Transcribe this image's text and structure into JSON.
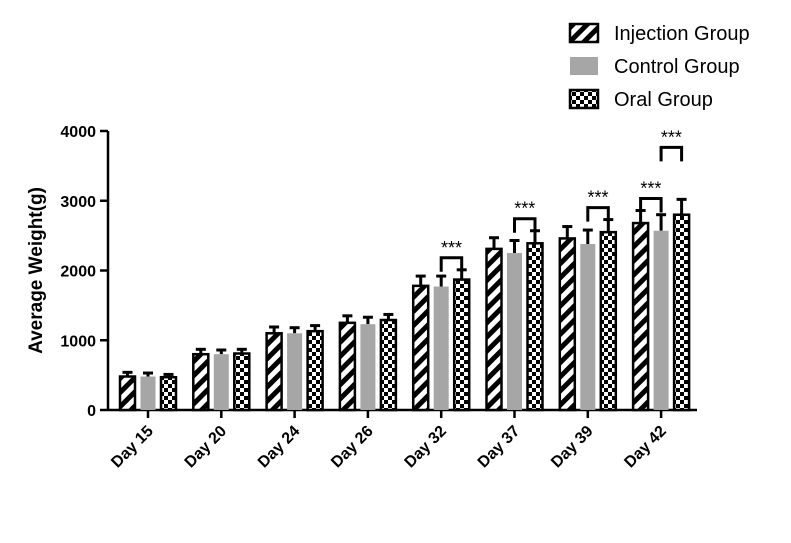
{
  "chart_data": {
    "type": "bar",
    "ylabel": "Average Weight(g)",
    "ylim": [
      0,
      4000
    ],
    "yticks": [
      "0",
      "1000",
      "2000",
      "3000",
      "4000"
    ],
    "categories": [
      "Day 15",
      "Day 20",
      "Day 24",
      "Day 26",
      "Day 32",
      "Day 37",
      "Day 39",
      "Day 42"
    ],
    "series": [
      {
        "name": "Injection Group",
        "pattern": "diagonal-stripes",
        "color": "#000000",
        "values": [
          480,
          800,
          1100,
          1250,
          1780,
          2310,
          2460,
          2680
        ],
        "errors": [
          60,
          70,
          90,
          100,
          140,
          160,
          170,
          180
        ]
      },
      {
        "name": "Control Group",
        "pattern": "solid",
        "color": "#a6a6a6",
        "values": [
          480,
          800,
          1100,
          1230,
          1770,
          2250,
          2380,
          2570
        ],
        "errors": [
          50,
          60,
          80,
          100,
          150,
          180,
          200,
          230
        ]
      },
      {
        "name": "Oral Group",
        "pattern": "checkerboard",
        "color": "#000000",
        "values": [
          470,
          810,
          1130,
          1290,
          1870,
          2390,
          2550,
          2800
        ],
        "errors": [
          40,
          60,
          80,
          80,
          140,
          180,
          180,
          220
        ]
      }
    ],
    "annotations": [
      {
        "text": "***",
        "category": "Day 32",
        "between": [
          "Control Group",
          "Oral Group"
        ]
      },
      {
        "text": "***",
        "category": "Day 37",
        "between": [
          "Control Group",
          "Oral Group"
        ]
      },
      {
        "text": "***",
        "category": "Day 39",
        "between": [
          "Control Group",
          "Oral Group"
        ]
      },
      {
        "text": "***",
        "category": "Day 42",
        "between": [
          "Injection Group",
          "Control Group"
        ]
      },
      {
        "text": "***",
        "category": "Day 42",
        "between": [
          "Control Group",
          "Oral Group"
        ]
      }
    ],
    "legend": "top-right"
  }
}
